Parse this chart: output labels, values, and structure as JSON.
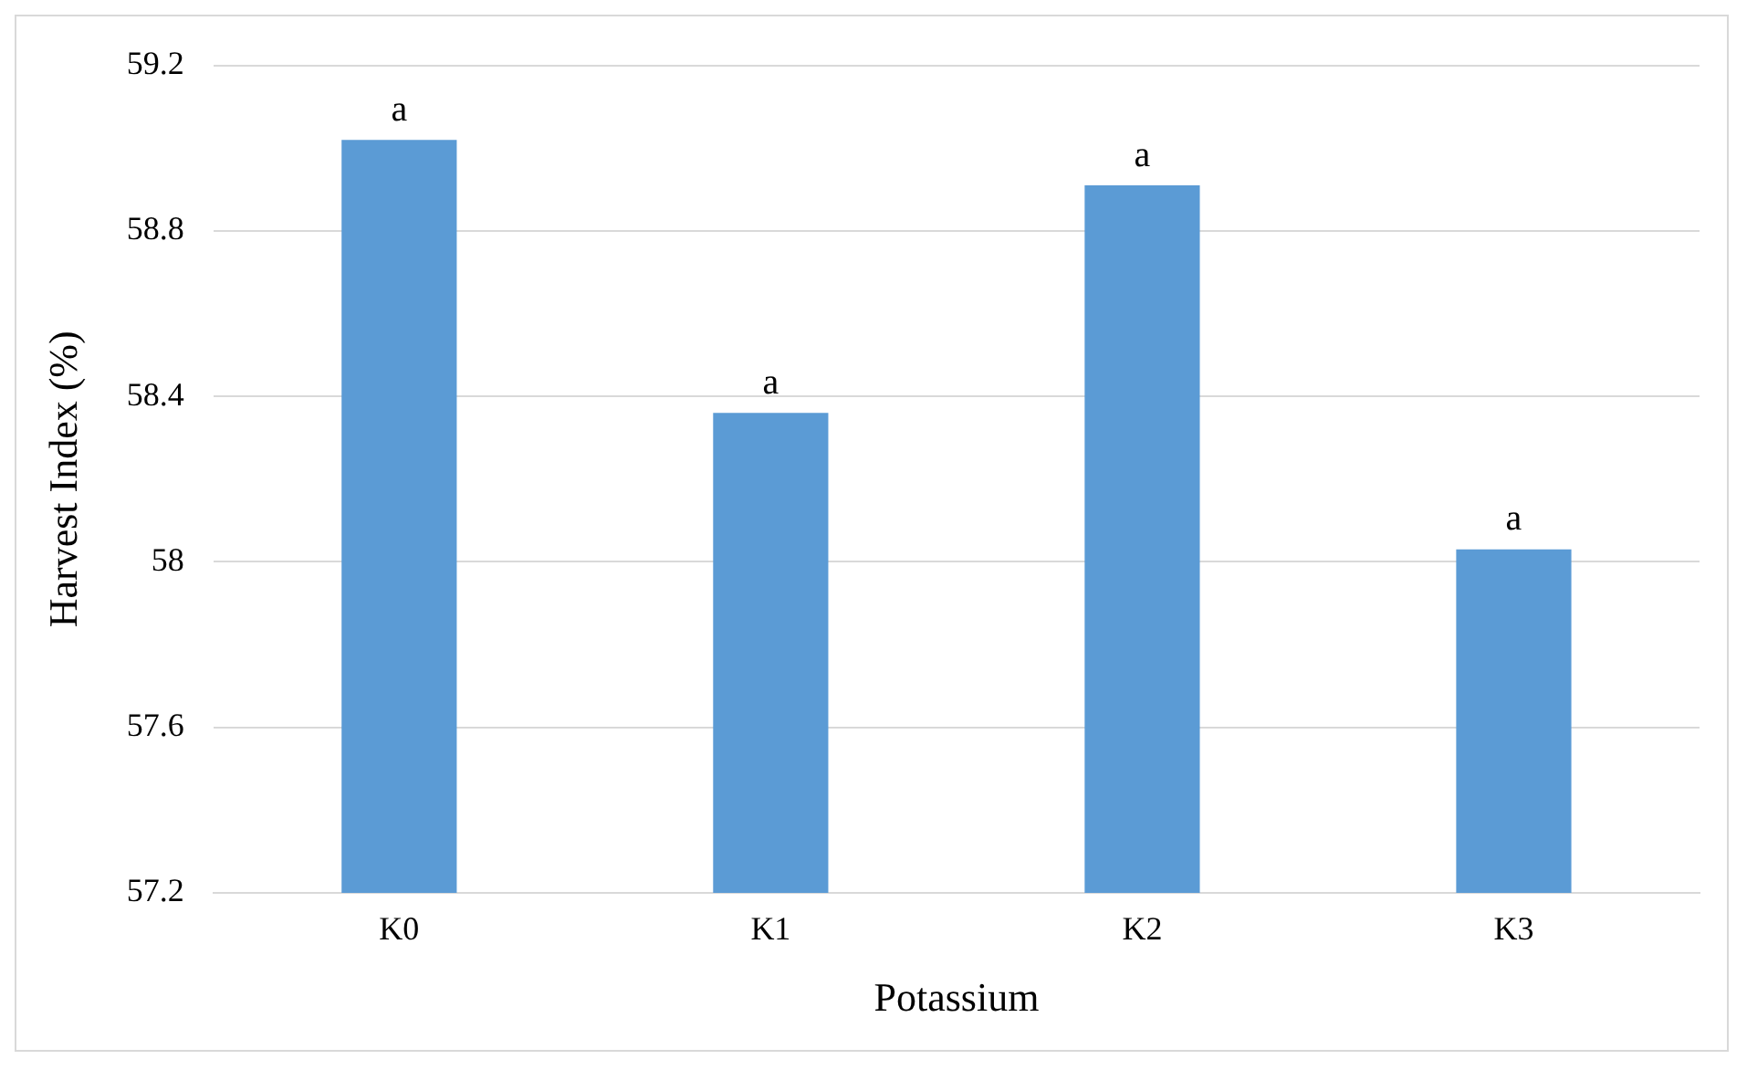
{
  "chart_data": {
    "type": "bar",
    "xlabel": "Potassium",
    "ylabel": "Harvest Index (%)",
    "categories": [
      "K0",
      "K1",
      "K2",
      "K3"
    ],
    "values": [
      59.02,
      58.36,
      58.91,
      58.03
    ],
    "color": "#5b9bd5",
    "ylim": [
      57.2,
      59.2
    ],
    "yticks": [
      {
        "value": 57.2,
        "label": "57.2"
      },
      {
        "value": 57.6,
        "label": "57.6"
      },
      {
        "value": 58,
        "label": "58"
      },
      {
        "value": 58.4,
        "label": "58.4"
      },
      {
        "value": 58.8,
        "label": "58.8"
      },
      {
        "value": 59.2,
        "label": "59.2"
      }
    ],
    "grid": "y",
    "annotations": [
      {
        "text": "a",
        "x": "K0",
        "y": 59.02
      },
      {
        "text": "a",
        "x": "K1",
        "y": 58.36
      },
      {
        "text": "a",
        "x": "K2",
        "y": 58.91
      },
      {
        "text": "a",
        "x": "K3",
        "y": 58.03
      }
    ]
  }
}
